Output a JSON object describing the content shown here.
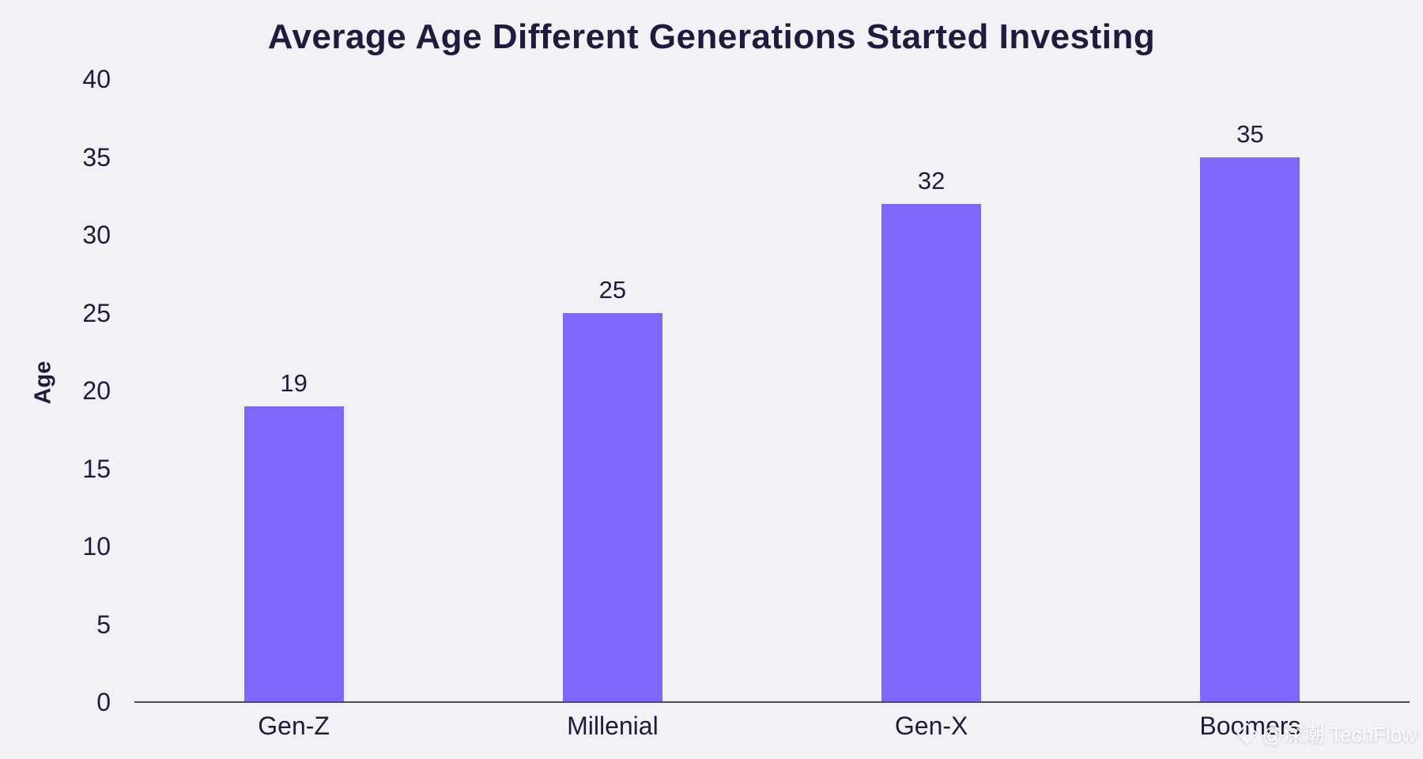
{
  "title": "Average Age Different Generations Started Investing",
  "watermark": {
    "text": "@深潮 TechFlow",
    "icon": "diamond-logo-icon"
  },
  "colors": {
    "background": "#F2F2F6",
    "bar": "#8166FB",
    "text": "#1E1B3C",
    "axis_line": "#4B4860",
    "watermark_text": "#FFFFFF"
  },
  "chart_data": {
    "type": "bar",
    "title": "Average Age Different Generations Started Investing",
    "categories": [
      "Gen-Z",
      "Millenial",
      "Gen-X",
      "Boomers"
    ],
    "values": [
      19,
      25,
      32,
      35
    ],
    "xlabel": "",
    "ylabel": "Age",
    "ylim": [
      0,
      40
    ],
    "yticks": [
      0,
      5,
      10,
      15,
      20,
      25,
      30,
      35,
      40
    ],
    "bar_value_labels": [
      "19",
      "25",
      "32",
      "35"
    ],
    "grid": false,
    "legend": false,
    "bar_color": "#8166FB"
  }
}
